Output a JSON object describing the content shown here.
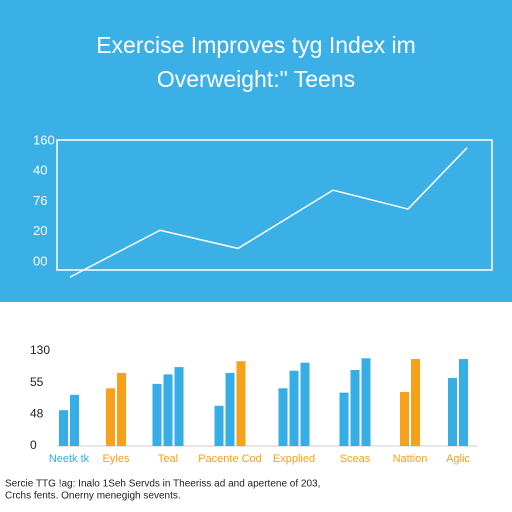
{
  "chart_data": [
    {
      "type": "line",
      "title": "Exercise Improves tyg Index im",
      "subtitle": "Overweight:\" Teens",
      "y_axis_labels": [
        "160",
        "40",
        "76",
        "20",
        "00"
      ],
      "ylim": [
        0,
        160
      ],
      "values": [
        -20,
        42,
        18,
        95,
        70,
        151
      ],
      "color": "#ffffff",
      "background": "#3bb0e6"
    },
    {
      "type": "bar",
      "y_axis_labels": [
        "130",
        "55",
        "48",
        "0"
      ],
      "ylim": [
        0,
        130
      ],
      "categories": [
        "Neetk tk",
        "Eyles",
        "Teal",
        "Pacente Cod",
        "Expplied",
        "Sceas",
        "Nattion",
        "Aglic"
      ],
      "category_colors": [
        "#35aee5",
        "#f5a016",
        "#f5a016",
        "#f5a016",
        "#f5a016",
        "#f5a016",
        "#f5a016",
        "#f5a016"
      ],
      "groups": [
        {
          "values": [
            49,
            70
          ],
          "colors": [
            "#35aee5",
            "#35aee5"
          ]
        },
        {
          "values": [
            79,
            100
          ],
          "colors": [
            "#f7a01a",
            "#f7a01a"
          ]
        },
        {
          "values": [
            85,
            98,
            108
          ],
          "colors": [
            "#35aee5",
            "#35aee5",
            "#35aee5"
          ]
        },
        {
          "values": [
            55,
            100,
            116
          ],
          "colors": [
            "#35aee5",
            "#35aee5",
            "#f7a01a"
          ]
        },
        {
          "values": [
            79,
            103,
            114
          ],
          "colors": [
            "#35aee5",
            "#35aee5",
            "#35aee5"
          ]
        },
        {
          "values": [
            73,
            104,
            120
          ],
          "colors": [
            "#35aee5",
            "#35aee5",
            "#35aee5"
          ]
        },
        {
          "values": [
            74,
            119
          ],
          "colors": [
            "#f7a01a",
            "#f7a01a"
          ]
        },
        {
          "values": [
            93,
            119
          ],
          "colors": [
            "#35aee5",
            "#35aee5"
          ]
        }
      ],
      "footnote": [
        "Sercie TTG !ag: Inalo 1Seh Servds in Theeriss ad and apertene of 203,",
        "Crchs fents. Onerny menegigh sevents."
      ]
    }
  ]
}
